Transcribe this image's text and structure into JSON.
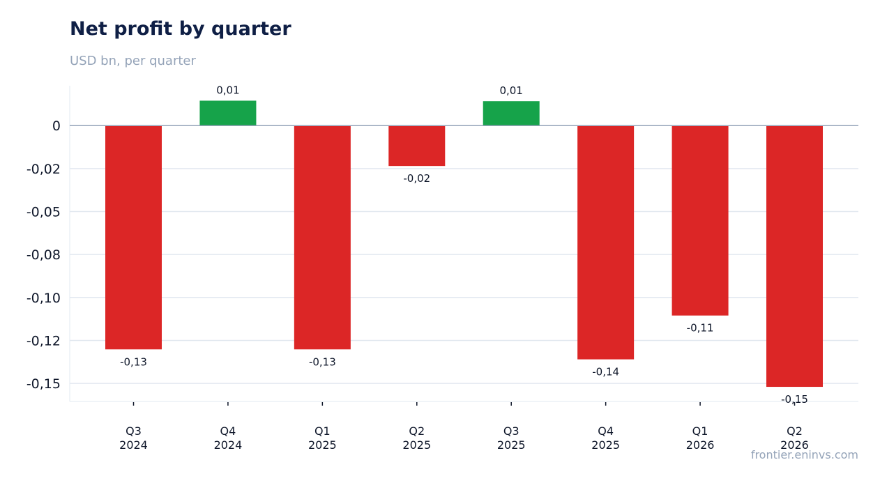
{
  "chart_data": {
    "type": "bar",
    "title": "Net profit by quarter",
    "subtitle": "USD bn, per quarter",
    "source": "frontier.eninvs.com",
    "categories": [
      [
        "Q3",
        "2024"
      ],
      [
        "Q4",
        "2024"
      ],
      [
        "Q1",
        "2025"
      ],
      [
        "Q2",
        "2025"
      ],
      [
        "Q3",
        "2025"
      ],
      [
        "Q4",
        "2025"
      ],
      [
        "Q1",
        "2026"
      ],
      [
        "Q2",
        "2026"
      ]
    ],
    "values": [
      -0.1302,
      0.0145,
      -0.1302,
      -0.0235,
      0.0142,
      -0.136,
      -0.1105,
      -0.152
    ],
    "data_labels": [
      "-0,13",
      "0,01",
      "-0,13",
      "-0,02",
      "0,01",
      "-0,14",
      "-0,11",
      "-0,15"
    ],
    "y_ticks": [
      0,
      -0.025,
      -0.05,
      -0.075,
      -0.1,
      -0.125,
      -0.15
    ],
    "y_tick_labels": [
      "0",
      "-0,02",
      "-0,05",
      "-0,08",
      "-0,10",
      "-0,12",
      "-0,15"
    ],
    "ylim": [
      -0.1605,
      0.0232
    ],
    "grid": true,
    "colors": {
      "positive": "#16a34a",
      "negative": "#dc2626",
      "zero_line": "#94a3b8",
      "grid": "#e2e8f0"
    }
  }
}
